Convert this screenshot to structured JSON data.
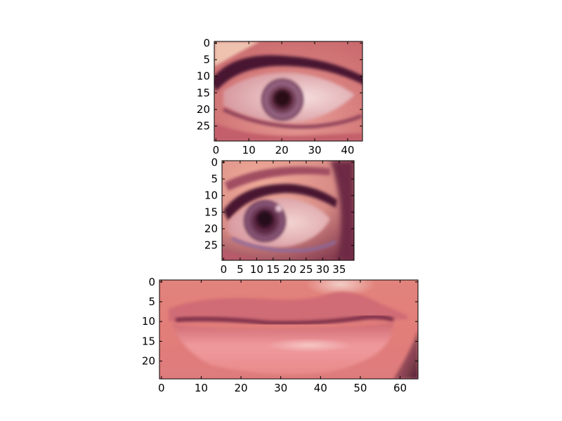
{
  "chart_data": [
    {
      "type": "image",
      "content": "left eye crop",
      "x_ticks": [
        "0",
        "10",
        "20",
        "30",
        "40"
      ],
      "y_ticks": [
        "0",
        "5",
        "10",
        "15",
        "20",
        "25"
      ],
      "xlim": [
        -0.5,
        44.5
      ],
      "ylim": [
        29.5,
        -0.5
      ]
    },
    {
      "type": "image",
      "content": "right eye crop",
      "x_ticks": [
        "0",
        "5",
        "10",
        "15",
        "20",
        "25",
        "30",
        "35"
      ],
      "y_ticks": [
        "0",
        "5",
        "10",
        "15",
        "20",
        "25"
      ],
      "xlim": [
        -0.5,
        39.5
      ],
      "ylim": [
        29.5,
        -0.5
      ]
    },
    {
      "type": "image",
      "content": "mouth crop",
      "x_ticks": [
        "0",
        "10",
        "20",
        "30",
        "40",
        "50",
        "60"
      ],
      "y_ticks": [
        "0",
        "5",
        "10",
        "15",
        "20"
      ],
      "xlim": [
        -0.5,
        64.5
      ],
      "ylim": [
        24.5,
        -0.5
      ]
    }
  ]
}
